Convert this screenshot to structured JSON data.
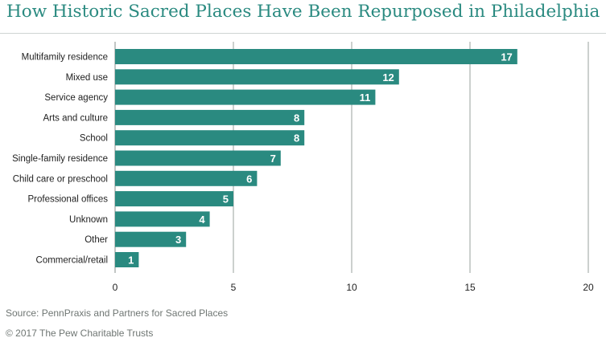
{
  "title": "How Historic Sacred Places Have Been Repurposed in Philadelphia",
  "source": "Source: PennPraxis and Partners for Sacred Places",
  "copyright": "© 2017 The Pew Charitable Trusts",
  "colors": {
    "bar": "#2a8a80",
    "title": "#2a8a80",
    "grid": "#9aa09e",
    "text": "#222222"
  },
  "chart_data": {
    "type": "bar",
    "orientation": "horizontal",
    "title": "How Historic Sacred Places Have Been Repurposed in Philadelphia",
    "xlabel": "",
    "ylabel": "",
    "xlim": [
      0,
      20
    ],
    "ticks": [
      0,
      5,
      10,
      15,
      20
    ],
    "grid": true,
    "categories": [
      "Multifamily residence",
      "Mixed use",
      "Service agency",
      "Arts and culture",
      "School",
      "Single-family residence",
      "Child care or preschool",
      "Professional offices",
      "Unknown",
      "Other",
      "Commercial/retail"
    ],
    "values": [
      17,
      12,
      11,
      8,
      8,
      7,
      6,
      5,
      4,
      3,
      1
    ]
  }
}
